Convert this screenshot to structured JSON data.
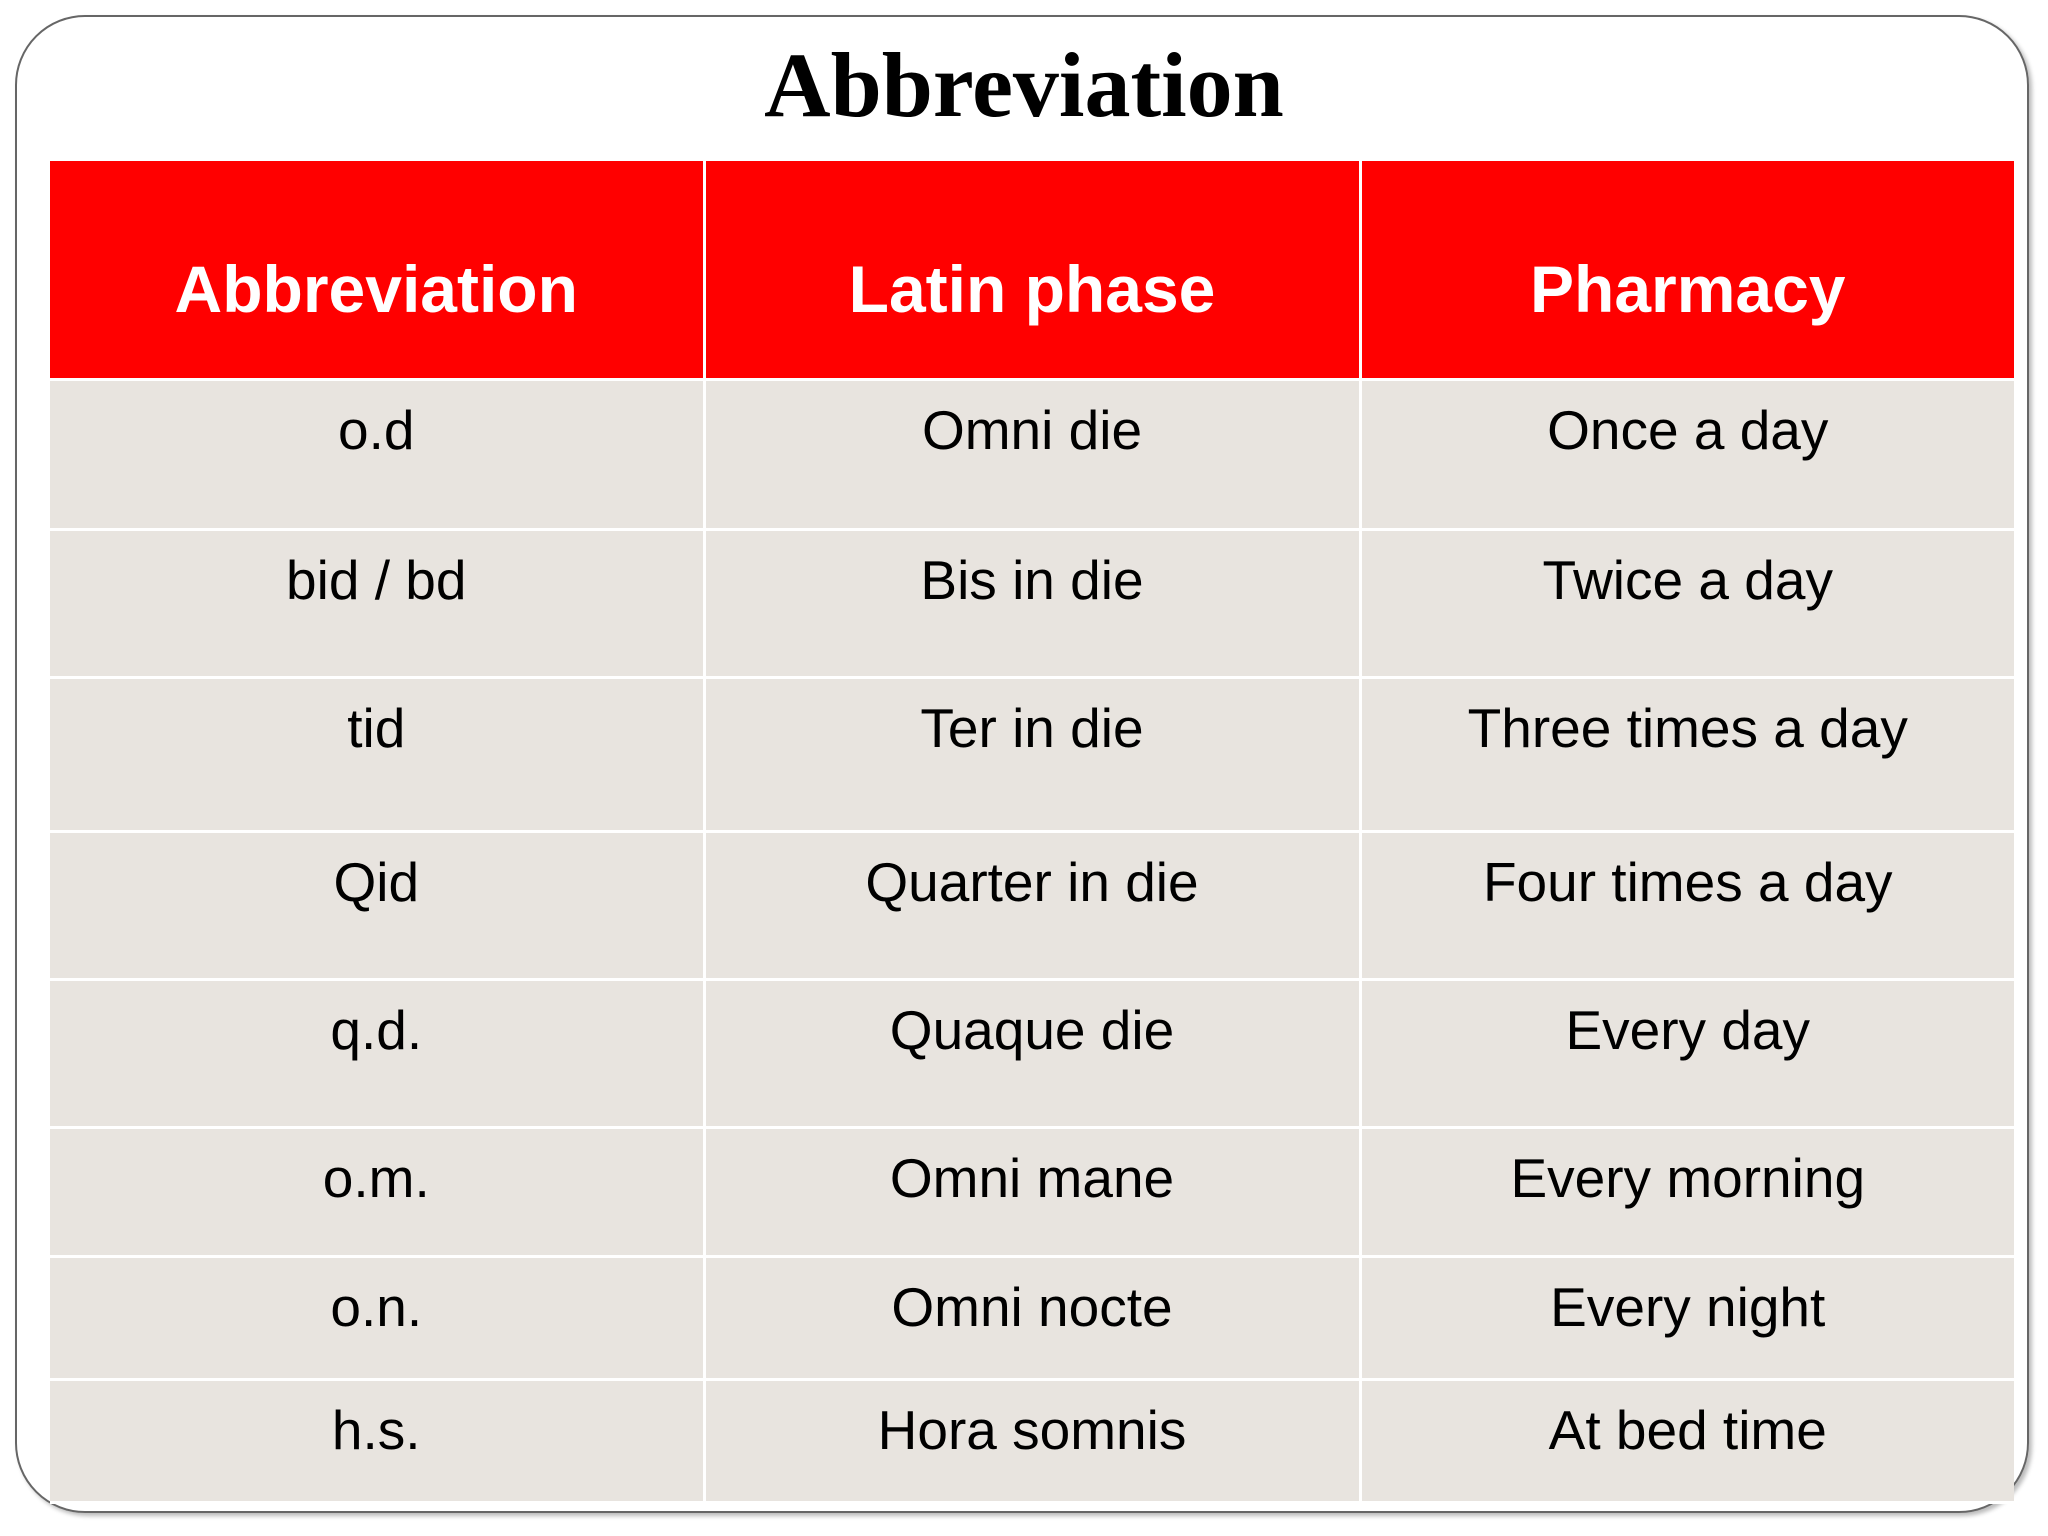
{
  "title": "Abbreviation",
  "table": {
    "header": [
      "Abbreviation",
      "Latin phase",
      "Pharmacy"
    ],
    "rows": [
      [
        "o.d",
        "Omni die",
        "Once a day"
      ],
      [
        "bid / bd",
        "Bis in die",
        "Twice a day"
      ],
      [
        "tid",
        "Ter in die",
        "Three times a day"
      ],
      [
        "Qid",
        "Quarter in die",
        "Four times a day"
      ],
      [
        "q.d.",
        "Quaque die",
        "Every day"
      ],
      [
        "o.m.",
        "Omni mane",
        "Every morning"
      ],
      [
        "o.n.",
        "Omni nocte",
        "Every night"
      ],
      [
        "h.s.",
        "Hora somnis",
        "At bed time"
      ]
    ]
  }
}
